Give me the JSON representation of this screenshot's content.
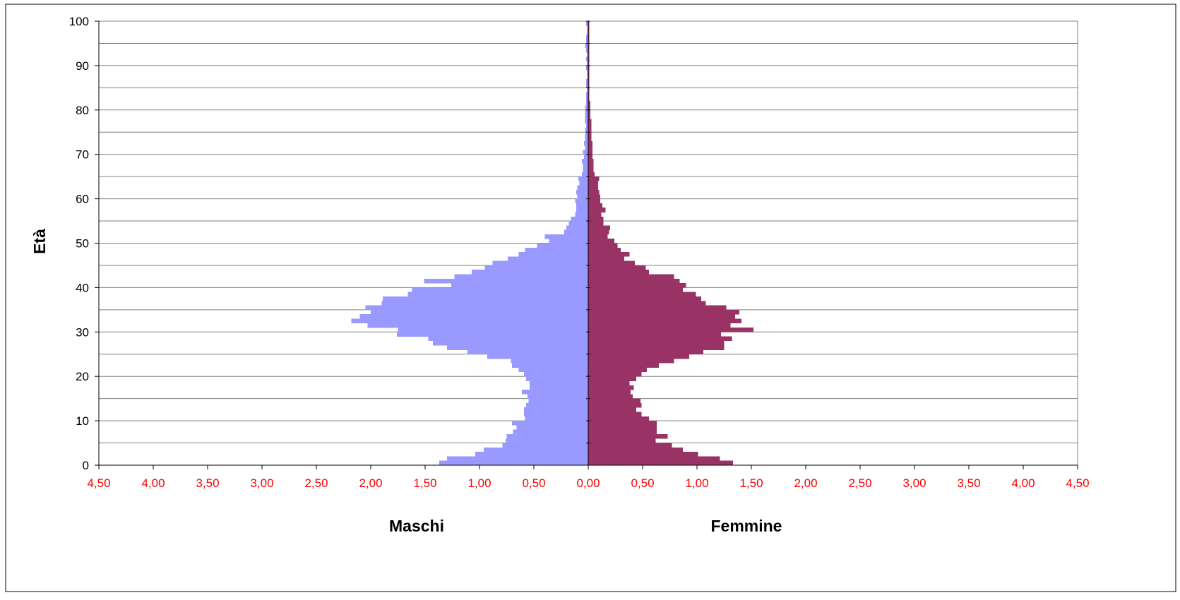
{
  "chart_data": {
    "type": "bar",
    "orientation": "horizontal",
    "layout": "population-pyramid",
    "ylabel": "Età",
    "y_ticks": [
      "0",
      "10",
      "20",
      "30",
      "40",
      "50",
      "60",
      "70",
      "80",
      "90",
      "100"
    ],
    "ylim": [
      0,
      100
    ],
    "x_ticks": [
      "4,50",
      "4,00",
      "3,50",
      "3,00",
      "2,50",
      "2,00",
      "1,50",
      "1,00",
      "0,50",
      "0,00",
      "0,50",
      "1,00",
      "1,50",
      "2,00",
      "2,50",
      "3,00",
      "3,50",
      "4,00",
      "4,50"
    ],
    "xlim": [
      -4.5,
      4.5
    ],
    "x_tick_color": "#ff0000",
    "grid": "horizontal",
    "series": [
      {
        "name": "Maschi",
        "side": "left",
        "color": "#9999ff",
        "values": [
          1.37,
          1.3,
          1.04,
          0.96,
          0.79,
          0.76,
          0.75,
          0.69,
          0.66,
          0.7,
          0.58,
          0.59,
          0.59,
          0.57,
          0.55,
          0.56,
          0.61,
          0.54,
          0.54,
          0.57,
          0.59,
          0.64,
          0.7,
          0.71,
          0.93,
          1.11,
          1.3,
          1.43,
          1.47,
          1.76,
          1.75,
          2.03,
          2.18,
          2.1,
          2.0,
          2.05,
          1.9,
          1.89,
          1.66,
          1.62,
          1.26,
          1.51,
          1.23,
          1.07,
          0.95,
          0.88,
          0.74,
          0.64,
          0.58,
          0.47,
          0.36,
          0.4,
          0.22,
          0.2,
          0.18,
          0.16,
          0.12,
          0.11,
          0.11,
          0.12,
          0.1,
          0.11,
          0.1,
          0.08,
          0.09,
          0.06,
          0.05,
          0.05,
          0.06,
          0.04,
          0.05,
          0.03,
          0.04,
          0.03,
          0.03,
          0.03,
          0.02,
          0.03,
          0.03,
          0.03,
          0.03,
          0.02,
          0.02,
          0.02,
          0.01,
          0.02,
          0.02,
          0.01,
          0.01,
          0.02,
          0.01,
          0.02,
          0.01,
          0.02,
          0.03,
          0.02,
          0.02,
          0.01,
          0.01,
          0.02
        ]
      },
      {
        "name": "Femmine",
        "side": "right",
        "color": "#993366",
        "values": [
          1.33,
          1.21,
          1.01,
          0.87,
          0.77,
          0.62,
          0.73,
          0.63,
          0.63,
          0.63,
          0.56,
          0.49,
          0.44,
          0.49,
          0.48,
          0.41,
          0.39,
          0.42,
          0.38,
          0.44,
          0.49,
          0.54,
          0.65,
          0.79,
          0.93,
          1.06,
          1.25,
          1.25,
          1.32,
          1.22,
          1.52,
          1.31,
          1.41,
          1.35,
          1.39,
          1.27,
          1.08,
          1.04,
          0.99,
          0.87,
          0.9,
          0.84,
          0.79,
          0.56,
          0.53,
          0.43,
          0.33,
          0.38,
          0.3,
          0.27,
          0.24,
          0.18,
          0.19,
          0.2,
          0.14,
          0.14,
          0.12,
          0.16,
          0.13,
          0.11,
          0.11,
          0.1,
          0.09,
          0.09,
          0.1,
          0.06,
          0.05,
          0.05,
          0.05,
          0.04,
          0.04,
          0.04,
          0.04,
          0.03,
          0.03,
          0.03,
          0.03,
          0.03,
          0.02,
          0.02,
          0.02,
          0.02,
          0.01,
          0.01,
          0.01,
          0.01,
          0.01,
          0.01,
          0.01,
          0.01,
          0.01,
          0.01,
          0.01,
          0.01,
          0.01,
          0.01,
          0.01,
          0.01,
          0.01,
          0.01
        ]
      }
    ]
  }
}
